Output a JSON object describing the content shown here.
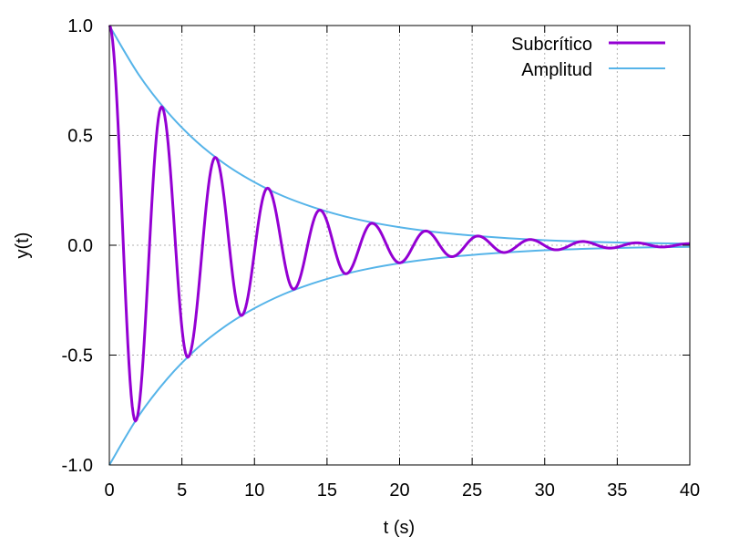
{
  "chart_data": {
    "type": "line",
    "xlabel": "t (s)",
    "ylabel": "y(t)",
    "xlim": [
      0,
      40
    ],
    "ylim": [
      -1.0,
      1.0
    ],
    "xticks": [
      0,
      5,
      10,
      15,
      20,
      25,
      30,
      35,
      40
    ],
    "yticks": [
      -1.0,
      -0.5,
      0.0,
      0.5,
      1.0
    ],
    "xtick_labels": [
      "0",
      "5",
      "10",
      "15",
      "20",
      "25",
      "30",
      "35",
      "40"
    ],
    "ytick_labels": [
      "-1.0",
      "-0.5",
      "0.0",
      "0.5",
      "1.0"
    ],
    "grid": true,
    "legend_position": "top-right",
    "series": [
      {
        "name": "Subcrítico",
        "color": "#9400d3",
        "x": [
          0,
          1.8,
          3.6,
          5.4,
          7.3,
          9.1,
          10.9,
          12.7,
          14.5,
          16.3,
          18.1,
          20.0,
          21.8,
          23.6,
          25.4,
          27.2,
          29.0,
          30.8,
          32.6,
          34.5,
          36.3,
          38.1,
          39.9,
          40
        ],
        "y": [
          1.0,
          -0.8,
          0.63,
          -0.51,
          0.4,
          -0.32,
          0.26,
          -0.2,
          0.16,
          -0.13,
          0.1,
          -0.08,
          0.065,
          -0.052,
          0.042,
          -0.033,
          0.026,
          -0.021,
          0.017,
          -0.013,
          0.011,
          -0.008,
          0.007,
          0.007
        ]
      },
      {
        "name": "Amplitud",
        "color": "#56b4e9",
        "x": [
          0,
          2,
          4,
          6,
          8,
          10,
          12,
          14,
          16,
          18,
          20,
          22,
          24,
          26,
          28,
          30,
          32,
          34,
          36,
          38,
          40
        ],
        "y": [
          1.0,
          0.779,
          0.607,
          0.472,
          0.368,
          0.287,
          0.223,
          0.174,
          0.135,
          0.105,
          0.082,
          0.064,
          0.05,
          0.039,
          0.03,
          0.023,
          0.018,
          0.014,
          0.011,
          0.009,
          0.007
        ]
      }
    ]
  },
  "legend": {
    "series_1": "Subcrítico",
    "series_2": "Amplitud"
  }
}
